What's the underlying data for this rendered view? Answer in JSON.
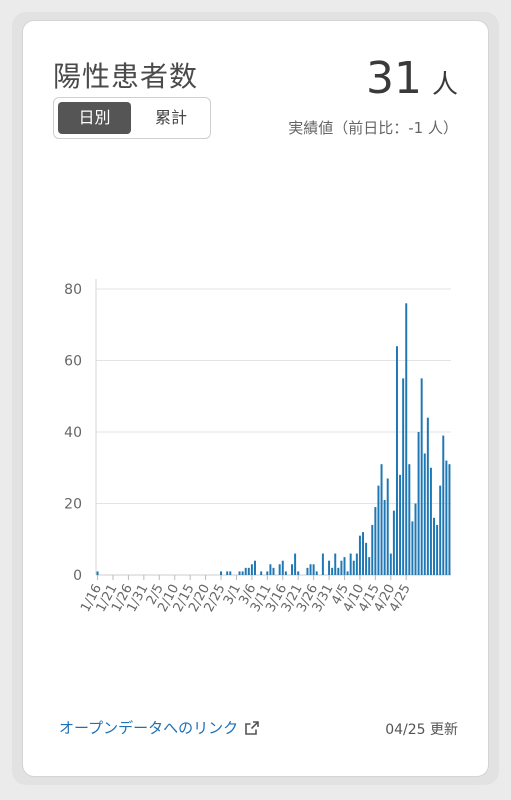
{
  "card": {
    "title": "陽性患者数",
    "toggle": {
      "daily": "日別",
      "cumulative": "累計"
    },
    "value": "31",
    "unit": "人",
    "sub": "実績値（前日比：-1 人）",
    "link": "オープンデータへのリンク",
    "updated": "04/25 更新"
  },
  "chart_data": {
    "type": "bar",
    "ylim": [
      0,
      80
    ],
    "yticks": [
      0,
      20,
      40,
      60,
      80
    ],
    "grid": true,
    "bar_color": "#1f77b4",
    "start_date": "1/16",
    "tick_labels": [
      "1/16",
      "1/21",
      "1/26",
      "1/31",
      "2/5",
      "2/10",
      "2/15",
      "2/20",
      "2/25",
      "3/1",
      "3/6",
      "3/11",
      "3/16",
      "3/21",
      "3/26",
      "3/31",
      "4/5",
      "4/10",
      "4/15",
      "4/20",
      "4/25"
    ],
    "values": [
      1,
      0,
      0,
      0,
      0,
      0,
      0,
      0,
      0,
      0,
      0,
      0,
      0,
      0,
      0,
      0,
      0,
      0,
      0,
      0,
      0,
      0,
      0,
      0,
      0,
      0,
      0,
      0,
      0,
      0,
      0,
      0,
      0,
      0,
      0,
      0,
      0,
      0,
      0,
      0,
      1,
      0,
      1,
      1,
      0,
      0,
      1,
      1,
      2,
      2,
      3,
      4,
      0,
      1,
      0,
      1,
      3,
      2,
      0,
      3,
      4,
      1,
      0,
      3,
      6,
      1,
      0,
      0,
      2,
      3,
      3,
      1,
      0,
      6,
      0,
      4,
      2,
      6,
      2,
      4,
      5,
      1,
      6,
      4,
      6,
      11,
      12,
      9,
      5,
      14,
      19,
      25,
      31,
      21,
      27,
      6,
      18,
      64,
      28,
      55,
      76,
      31,
      15,
      20,
      40,
      55,
      34,
      44,
      30,
      16,
      14,
      25,
      39,
      32,
      31
    ]
  }
}
